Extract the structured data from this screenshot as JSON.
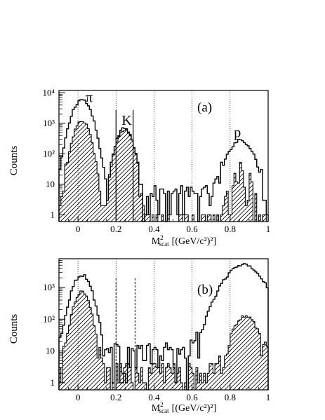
{
  "chart_data": [
    {
      "type": "histogram",
      "panel_label": "(a)",
      "y_axis": {
        "label": "Counts",
        "scale": "log",
        "ylim": [
          0.6,
          12000
        ],
        "tick_values": [
          1,
          10,
          100,
          1000,
          10000
        ],
        "tick_labels": [
          "1",
          "10",
          "10²",
          "10³",
          "10⁴"
        ]
      },
      "x_axis": {
        "label_main": "M",
        "label_sup": "2",
        "label_sub": "scat",
        "label_unit": "[(GeV/c²)²]",
        "xlim": [
          -0.1,
          1.0
        ],
        "tick_values": [
          0,
          0.2,
          0.4,
          0.6,
          0.8,
          1.0
        ],
        "tick_labels": [
          "0",
          "0.2",
          "0.4",
          "0.6",
          "0.8",
          "1"
        ]
      },
      "dotted_lines_x": [
        0.0,
        0.2,
        0.4,
        0.6,
        0.8
      ],
      "solid_lines_x": [
        0.2,
        0.29
      ],
      "annotations": [
        {
          "text": "π",
          "x": 0.04,
          "y": 5000
        },
        {
          "text": "K",
          "x": 0.23,
          "y": 900
        },
        {
          "text": "p",
          "x": 0.82,
          "y": 350
        }
      ],
      "series": [
        {
          "style": "outline",
          "peaks": [
            {
              "mu": 0.02,
              "sigma": 0.035,
              "amp": 6000
            },
            {
              "mu": 0.245,
              "sigma": 0.03,
              "amp": 700
            },
            {
              "mu": 0.855,
              "sigma": 0.045,
              "amp": 280
            }
          ],
          "background": 4
        },
        {
          "style": "hatched",
          "peaks": [
            {
              "mu": 0.02,
              "sigma": 0.03,
              "amp": 1200
            },
            {
              "mu": 0.245,
              "sigma": 0.03,
              "amp": 650
            },
            {
              "mu": 0.86,
              "sigma": 0.035,
              "amp": 25
            }
          ],
          "background": 0.5
        }
      ]
    },
    {
      "type": "histogram",
      "panel_label": "(b)",
      "y_axis": {
        "label": "Counts",
        "scale": "log",
        "ylim": [
          0.6,
          8000
        ],
        "tick_values": [
          1,
          10,
          100,
          1000
        ],
        "tick_labels": [
          "1",
          "10",
          "10²",
          "10³"
        ]
      },
      "x_axis": {
        "label_main": "M",
        "label_sup": "2",
        "label_sub": "scat",
        "label_unit": "[(GeV/c²)²]",
        "xlim": [
          -0.1,
          1.0
        ],
        "tick_values": [
          0,
          0.2,
          0.4,
          0.6,
          0.8,
          1.0
        ],
        "tick_labels": [
          "0",
          "0.2",
          "0.4",
          "0.6",
          "0.8",
          "1"
        ]
      },
      "dotted_lines_x": [
        0.0,
        0.2,
        0.4,
        0.6,
        0.8
      ],
      "dashed_lines_x": [
        0.2,
        0.3
      ],
      "annotations": [],
      "series": [
        {
          "style": "outline",
          "peaks": [
            {
              "mu": 0.02,
              "sigma": 0.035,
              "amp": 2500
            },
            {
              "mu": 0.87,
              "sigma": 0.07,
              "amp": 5000
            }
          ],
          "background": 8
        },
        {
          "style": "hatched",
          "peaks": [
            {
              "mu": 0.02,
              "sigma": 0.03,
              "amp": 700
            },
            {
              "mu": 0.88,
              "sigma": 0.045,
              "amp": 120
            }
          ],
          "background": 2
        }
      ]
    }
  ]
}
